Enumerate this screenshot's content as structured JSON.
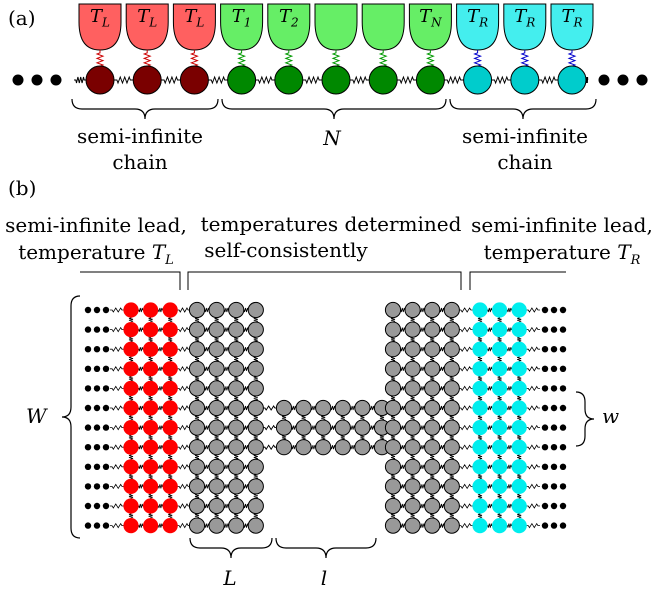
{
  "panel_a": {
    "label": "(a)",
    "baths_left": [
      "T",
      "T",
      "T"
    ],
    "baths_left_sub": [
      "L",
      "L",
      "L"
    ],
    "baths_center": [
      {
        "main": "T",
        "sub": "1"
      },
      {
        "main": "T",
        "sub": "2"
      },
      {
        "main": "",
        "sub": ""
      },
      {
        "main": "",
        "sub": ""
      },
      {
        "main": "T",
        "sub": "N"
      }
    ],
    "baths_right_sub": [
      "R",
      "R",
      "R"
    ],
    "left_brace_label_line1": "semi-infinite",
    "left_brace_label_line2": "chain",
    "center_brace_label": "N",
    "right_brace_label_line1": "semi-infinite",
    "right_brace_label_line2": "chain",
    "colors": {
      "left_bath": "#ff6060",
      "left_atom": "#7a0000",
      "center_bath": "#66ee66",
      "center_atom": "#008800",
      "right_bath": "#44eeee",
      "right_atom": "#00cccc",
      "left_spring": "#cc0000",
      "center_spring": "#009900",
      "right_spring": "#0000cc"
    }
  },
  "panel_b": {
    "label": "(b)",
    "left_lead_line1": "semi-infinite lead,",
    "left_lead_line2": "temperature ",
    "left_lead_T": "T",
    "left_lead_sub": "L",
    "center_line1": "temperatures determined",
    "center_line2": "self-consistently",
    "right_lead_line1": "semi-infinite lead,",
    "right_lead_line2": "temperature ",
    "right_lead_T": "T",
    "right_lead_sub": "R",
    "W_label": "W",
    "w_label": "w",
    "L_label": "L",
    "l_label": "l",
    "colors": {
      "left_lead": "#ff0000",
      "center": "#999999",
      "right_lead": "#00eeee"
    }
  }
}
